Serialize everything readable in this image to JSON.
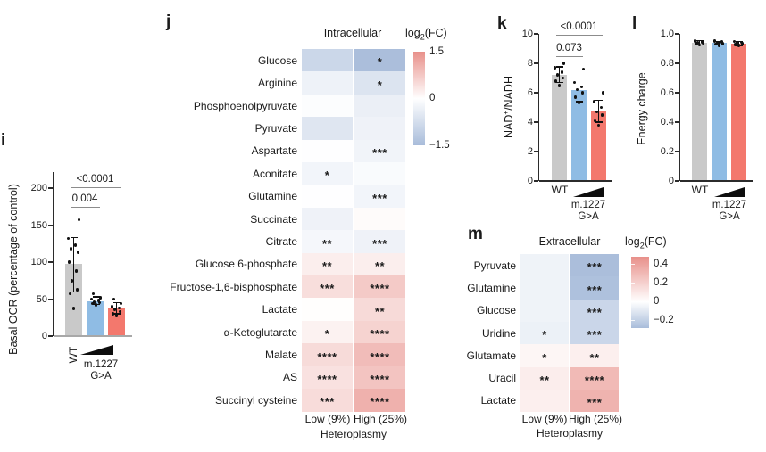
{
  "colors": {
    "bar_gray": "#c9c9c9",
    "bar_blue": "#8fbce4",
    "bar_red": "#f3786d",
    "heat_red": "#e8908a",
    "heat_blue": "#a8bcda",
    "axis": "#2b2b2b",
    "baseline_gray": "#a8a8a8",
    "sig_line": "#8c8c8c",
    "dot": "#111111"
  },
  "x_axis": {
    "wt": "WT",
    "mut_line1": "m.1227",
    "mut_line2": "G>A"
  },
  "chart_data": [
    {
      "id": "i",
      "type": "bar",
      "panel_letter": "i",
      "ylabel": "Basal OCR (percentage of control)",
      "ylim": [
        0,
        222
      ],
      "ytick_values": [
        0,
        50,
        100,
        150,
        200
      ],
      "ytick_labels": [
        "0",
        "50",
        "100",
        "150",
        "200"
      ],
      "categories": [
        "WT",
        "m.1227 G>A low heteroplasmy",
        "m.1227 G>A high heteroplasmy"
      ],
      "values": [
        97,
        47,
        37
      ],
      "bar_colors": [
        "gray",
        "blue",
        "red"
      ],
      "errors": [
        [
          60,
          133
        ],
        [
          43,
          53
        ],
        [
          30,
          45
        ]
      ],
      "points": [
        [
          37,
          57,
          63,
          75,
          88,
          100,
          113,
          118,
          123,
          132,
          157
        ],
        [
          42,
          44,
          45,
          46,
          48,
          50,
          52,
          57
        ],
        [
          28,
          30,
          33,
          36,
          38,
          40,
          44,
          50
        ]
      ],
      "significance": [
        {
          "label": "<0.0001",
          "from": 0,
          "to": 2
        },
        {
          "label": "0.004",
          "from": 0,
          "to": 1
        }
      ]
    },
    {
      "id": "j",
      "type": "heatmap",
      "panel_letter": "j",
      "title": "Intracellular",
      "legend": {
        "label_parts": {
          "pre": "log",
          "sub": "2",
          "post": "(FC)"
        },
        "max": 1.5,
        "min": -1.5,
        "tick_values": [
          1.5,
          0,
          -1.5
        ],
        "tick_labels": [
          "1.5",
          "0",
          "−1.5"
        ]
      },
      "columns": [
        "Low (9%)",
        "High (25%)"
      ],
      "xlabel": "Heteroplasmy",
      "rows": [
        {
          "label": "Glucose",
          "values": [
            -0.9,
            -1.45
          ],
          "stars": [
            "",
            "*"
          ]
        },
        {
          "label": "Arginine",
          "values": [
            -0.3,
            -0.6
          ],
          "stars": [
            "",
            "*"
          ]
        },
        {
          "label": "Phosphoenolpyruvate",
          "values": [
            -0.05,
            -0.35
          ],
          "stars": [
            "",
            ""
          ]
        },
        {
          "label": "Pyruvate",
          "values": [
            -0.55,
            -0.28
          ],
          "stars": [
            "",
            ""
          ]
        },
        {
          "label": "Aspartate",
          "values": [
            -0.02,
            -0.25
          ],
          "stars": [
            "",
            "***"
          ]
        },
        {
          "label": "Aconitate",
          "values": [
            -0.22,
            -0.1
          ],
          "stars": [
            "*",
            ""
          ]
        },
        {
          "label": "Glutamine",
          "values": [
            -0.02,
            -0.22
          ],
          "stars": [
            "",
            "***"
          ]
        },
        {
          "label": "Succinate",
          "values": [
            -0.28,
            0.06
          ],
          "stars": [
            "",
            ""
          ]
        },
        {
          "label": "Citrate",
          "values": [
            -0.18,
            -0.28
          ],
          "stars": [
            "**",
            "***"
          ]
        },
        {
          "label": "Glucose 6-phosphate",
          "values": [
            0.23,
            0.23
          ],
          "stars": [
            "**",
            "**"
          ]
        },
        {
          "label": "Fructose-1,6-bisphosphate",
          "values": [
            0.45,
            0.72
          ],
          "stars": [
            "***",
            "****"
          ]
        },
        {
          "label": "Lactate",
          "values": [
            0.02,
            0.5
          ],
          "stars": [
            "",
            "**"
          ]
        },
        {
          "label": "α-Ketoglutarate",
          "values": [
            0.18,
            0.6
          ],
          "stars": [
            "*",
            "****"
          ]
        },
        {
          "label": "Malate",
          "values": [
            0.49,
            0.9
          ],
          "stars": [
            "****",
            "****"
          ]
        },
        {
          "label": "AS",
          "values": [
            0.4,
            0.8
          ],
          "stars": [
            "****",
            "****"
          ]
        },
        {
          "label": "Succinyl cysteine",
          "values": [
            0.47,
            1.05
          ],
          "stars": [
            "***",
            "****"
          ]
        }
      ]
    },
    {
      "id": "k",
      "type": "bar",
      "panel_letter": "k",
      "ylabel_parts": {
        "pre": "NAD",
        "sup": "+",
        "post": "/NADH"
      },
      "ylim": [
        0,
        10
      ],
      "ytick_values": [
        0,
        2,
        4,
        6,
        8,
        10
      ],
      "ytick_labels": [
        "0",
        "2",
        "4",
        "6",
        "8",
        "10"
      ],
      "categories": [
        "WT",
        "m.1227 G>A low heteroplasmy",
        "m.1227 G>A high heteroplasmy"
      ],
      "values": [
        7.2,
        6.2,
        4.75
      ],
      "bar_colors": [
        "gray",
        "blue",
        "red"
      ],
      "errors": [
        [
          6.7,
          7.75
        ],
        [
          5.4,
          7.0
        ],
        [
          4.0,
          5.5
        ]
      ],
      "points": [
        [
          6.5,
          6.8,
          7.0,
          7.2,
          7.4,
          7.7,
          8.0
        ],
        [
          5.3,
          5.7,
          6.0,
          6.2,
          6.4,
          6.7,
          7.6
        ],
        [
          3.8,
          4.1,
          4.5,
          4.7,
          5.0,
          5.4,
          6.0
        ]
      ],
      "significance": [
        {
          "label": "<0.0001",
          "from": 0,
          "to": 2
        },
        {
          "label": "0.073",
          "from": 0,
          "to": 1
        }
      ]
    },
    {
      "id": "l",
      "type": "bar",
      "panel_letter": "l",
      "ylabel": "Energy charge",
      "ylim": [
        0,
        1.0
      ],
      "ytick_values": [
        0,
        0.2,
        0.4,
        0.6,
        0.8,
        1.0
      ],
      "ytick_labels": [
        "0",
        "0.2",
        "0.4",
        "0.6",
        "0.8",
        "1.0"
      ],
      "categories": [
        "WT",
        "m.1227 G>A low heteroplasmy",
        "m.1227 G>A high heteroplasmy"
      ],
      "values": [
        0.94,
        0.937,
        0.935
      ],
      "bar_colors": [
        "gray",
        "blue",
        "red"
      ],
      "errors": [
        [
          0.925,
          0.955
        ],
        [
          0.925,
          0.95
        ],
        [
          0.92,
          0.95
        ]
      ],
      "points": [
        [
          0.925,
          0.932,
          0.938,
          0.94,
          0.945,
          0.952
        ],
        [
          0.922,
          0.93,
          0.935,
          0.94,
          0.944,
          0.95
        ],
        [
          0.92,
          0.928,
          0.934,
          0.938,
          0.943,
          0.948
        ]
      ],
      "significance": []
    },
    {
      "id": "m",
      "type": "heatmap",
      "panel_letter": "m",
      "title": "Extracellular",
      "legend": {
        "label_parts": {
          "pre": "log",
          "sub": "2",
          "post": "(FC)"
        },
        "max": 0.48,
        "min": -0.28,
        "tick_values": [
          0.4,
          0.2,
          0,
          -0.2
        ],
        "tick_labels": [
          "0.4",
          "0.2",
          "0",
          "−0.2"
        ]
      },
      "columns": [
        "Low (9%)",
        "High (25%)"
      ],
      "xlabel": "Heteroplasmy",
      "rows": [
        {
          "label": "Pyruvate",
          "values": [
            -0.05,
            -0.27
          ],
          "stars": [
            "",
            "***"
          ]
        },
        {
          "label": "Glutamine",
          "values": [
            -0.05,
            -0.26
          ],
          "stars": [
            "",
            "***"
          ]
        },
        {
          "label": "Glucose",
          "values": [
            -0.05,
            -0.17
          ],
          "stars": [
            "",
            "***"
          ]
        },
        {
          "label": "Uridine",
          "values": [
            -0.06,
            -0.17
          ],
          "stars": [
            "*",
            "***"
          ]
        },
        {
          "label": "Glutamate",
          "values": [
            0.04,
            0.07
          ],
          "stars": [
            "*",
            "**"
          ]
        },
        {
          "label": "Uracil",
          "values": [
            0.08,
            0.3
          ],
          "stars": [
            "**",
            "****"
          ]
        },
        {
          "label": "Lactate",
          "values": [
            0.07,
            0.33
          ],
          "stars": [
            "",
            "***"
          ]
        }
      ]
    }
  ]
}
